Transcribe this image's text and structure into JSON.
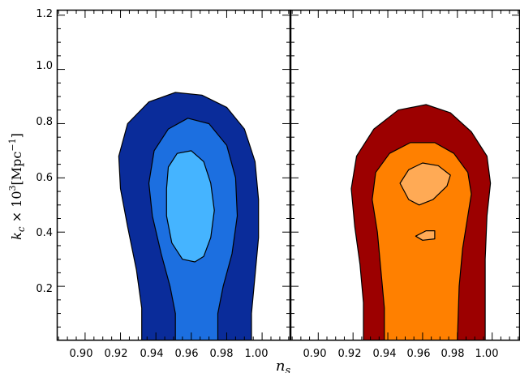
{
  "chart_data": {
    "type": "contour",
    "xlabel": "n",
    "xlabel_sub": "s",
    "ylabel": {
      "var": "k",
      "var_sub": "c",
      "times": " × 10",
      "exp": "3",
      "unit_open": "[Mpc",
      "unit_exp": "−1",
      "unit_close": "]"
    },
    "x_tick_labels": [
      "0.90",
      "0.92",
      "0.94",
      "0.96",
      "0.98",
      "1.00"
    ],
    "y_tick_labels": [
      "0.2",
      "0.4",
      "0.6",
      "0.8",
      "1.0",
      "1.2"
    ],
    "panels": [
      {
        "name": "left",
        "xlim": [
          0.884,
          1.016
        ],
        "ylim": [
          0.0,
          1.22
        ],
        "x_ticks": [
          0.9,
          0.92,
          0.94,
          0.96,
          0.98,
          1.0
        ],
        "y_ticks": [
          0.2,
          0.4,
          0.6,
          0.8,
          1.0,
          1.2
        ],
        "y_tick_labels_shown": true,
        "colors": [
          "#0a2c9a",
          "#1c6fe0",
          "#45b4ff"
        ],
        "contours": [
          [
            [
              0.932,
              0.0
            ],
            [
              0.932,
              0.12
            ],
            [
              0.929,
              0.26
            ],
            [
              0.924,
              0.42
            ],
            [
              0.92,
              0.56
            ],
            [
              0.919,
              0.68
            ],
            [
              0.924,
              0.8
            ],
            [
              0.936,
              0.88
            ],
            [
              0.951,
              0.915
            ],
            [
              0.966,
              0.905
            ],
            [
              0.98,
              0.86
            ],
            [
              0.99,
              0.78
            ],
            [
              0.996,
              0.66
            ],
            [
              0.998,
              0.52
            ],
            [
              0.998,
              0.38
            ],
            [
              0.996,
              0.24
            ],
            [
              0.994,
              0.1
            ],
            [
              0.994,
              0.0
            ]
          ],
          [
            [
              0.951,
              0.0
            ],
            [
              0.951,
              0.1
            ],
            [
              0.948,
              0.2
            ],
            [
              0.943,
              0.32
            ],
            [
              0.938,
              0.46
            ],
            [
              0.936,
              0.58
            ],
            [
              0.939,
              0.7
            ],
            [
              0.947,
              0.78
            ],
            [
              0.958,
              0.82
            ],
            [
              0.97,
              0.8
            ],
            [
              0.98,
              0.72
            ],
            [
              0.985,
              0.6
            ],
            [
              0.986,
              0.46
            ],
            [
              0.983,
              0.32
            ],
            [
              0.978,
              0.2
            ],
            [
              0.975,
              0.1
            ],
            [
              0.975,
              0.0
            ]
          ],
          [
            [
              0.946,
              0.56
            ],
            [
              0.947,
              0.64
            ],
            [
              0.952,
              0.69
            ],
            [
              0.96,
              0.7
            ],
            [
              0.967,
              0.66
            ],
            [
              0.971,
              0.58
            ],
            [
              0.973,
              0.48
            ],
            [
              0.971,
              0.38
            ],
            [
              0.967,
              0.31
            ],
            [
              0.962,
              0.29
            ],
            [
              0.955,
              0.3
            ],
            [
              0.949,
              0.36
            ],
            [
              0.946,
              0.46
            ]
          ]
        ]
      },
      {
        "name": "right",
        "xlim": [
          0.884,
          1.016
        ],
        "ylim": [
          0.0,
          1.22
        ],
        "x_ticks": [
          0.9,
          0.92,
          0.94,
          0.96,
          0.98,
          1.0
        ],
        "y_ticks": [
          0.2,
          0.4,
          0.6,
          0.8,
          1.0,
          1.2
        ],
        "y_tick_labels_shown": false,
        "colors": [
          "#9c0000",
          "#ff8000",
          "#ffaa55"
        ],
        "contours": [
          [
            [
              0.926,
              0.0
            ],
            [
              0.926,
              0.14
            ],
            [
              0.924,
              0.28
            ],
            [
              0.921,
              0.42
            ],
            [
              0.919,
              0.56
            ],
            [
              0.922,
              0.68
            ],
            [
              0.932,
              0.78
            ],
            [
              0.946,
              0.85
            ],
            [
              0.962,
              0.87
            ],
            [
              0.976,
              0.84
            ],
            [
              0.988,
              0.77
            ],
            [
              0.997,
              0.68
            ],
            [
              0.999,
              0.58
            ],
            [
              0.997,
              0.46
            ],
            [
              0.996,
              0.3
            ],
            [
              0.996,
              0.14
            ],
            [
              0.996,
              0.0
            ]
          ],
          [
            [
              0.938,
              0.0
            ],
            [
              0.938,
              0.12
            ],
            [
              0.936,
              0.26
            ],
            [
              0.934,
              0.4
            ],
            [
              0.931,
              0.52
            ],
            [
              0.933,
              0.62
            ],
            [
              0.941,
              0.69
            ],
            [
              0.953,
              0.73
            ],
            [
              0.967,
              0.73
            ],
            [
              0.978,
              0.69
            ],
            [
              0.986,
              0.62
            ],
            [
              0.988,
              0.54
            ],
            [
              0.986,
              0.46
            ],
            [
              0.983,
              0.34
            ],
            [
              0.981,
              0.2
            ],
            [
              0.98,
              0.0
            ]
          ],
          [
            [
              0.947,
              0.58
            ],
            [
              0.952,
              0.63
            ],
            [
              0.96,
              0.655
            ],
            [
              0.969,
              0.645
            ],
            [
              0.976,
              0.61
            ],
            [
              0.974,
              0.57
            ],
            [
              0.966,
              0.52
            ],
            [
              0.958,
              0.5
            ],
            [
              0.952,
              0.52
            ]
          ],
          [
            [
              0.956,
              0.385
            ],
            [
              0.962,
              0.405
            ],
            [
              0.967,
              0.405
            ],
            [
              0.967,
              0.375
            ],
            [
              0.96,
              0.37
            ]
          ]
        ]
      }
    ]
  }
}
